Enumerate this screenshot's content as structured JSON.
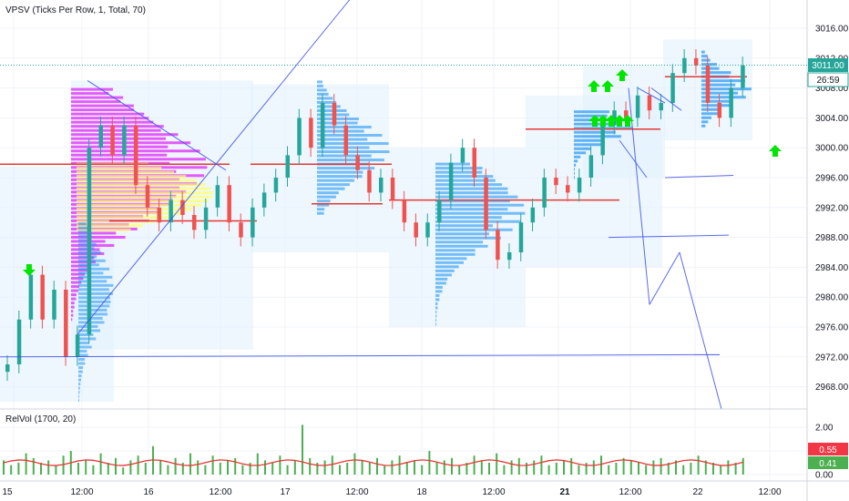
{
  "indicators": {
    "main_title": "VPSV (Ticks Per Row, 1, Total, 70)",
    "sub_title": "RelVol (1700, 20)"
  },
  "price_axis": {
    "ticks": [
      "3016.00",
      "3012.00",
      "3008.00",
      "3004.00",
      "3000.00",
      "2996.00",
      "2992.00",
      "2988.00",
      "2984.00",
      "2980.00",
      "2976.00",
      "2972.00",
      "2968.00"
    ],
    "last_price": "3011.00",
    "countdown": "26:59"
  },
  "volume_axis": {
    "ticks": [
      "2.00",
      "1.00",
      "0.00"
    ],
    "avg_tag": "0.55",
    "last_tag": "0.41"
  },
  "time_axis": {
    "labels": [
      "15",
      "12:00",
      "16",
      "12:00",
      "17",
      "12:00",
      "18",
      "12:00",
      "19",
      "12:00",
      "21",
      "12:00",
      "22",
      "12:00"
    ],
    "bold_index": 10
  },
  "colors": {
    "up": "#26a69a",
    "down": "#ef5350",
    "poc": "#e53935",
    "profile_blue": "#2196f3",
    "profile_magenta": "#e040fb",
    "profile_yellow": "#ffff66",
    "arrow_green": "#00e600",
    "projection_line": "#3f51e5",
    "volume_bar": "#4caf50",
    "rel_line": "#e53935",
    "last_price_tag": "#26a69a",
    "avg_tag": "#f23645"
  },
  "chart_data": {
    "type": "candlestick",
    "price_ylim": [
      2965,
      3019
    ],
    "price_tick_values": [
      3016,
      3012,
      3008,
      3004,
      3000,
      2996,
      2992,
      2988,
      2984,
      2980,
      2976,
      2972,
      2968
    ],
    "volume_ylim": [
      -0.4,
      2.4
    ],
    "volume_tick_values": [
      2,
      1,
      0
    ],
    "last_price": 3011.0,
    "relvol_avg": 0.55,
    "relvol_last": 0.41,
    "sessions": [
      {
        "label": "15",
        "close": 2973,
        "poc": 2969
      },
      {
        "label": "16",
        "close": 2991,
        "poc": 2997.8
      },
      {
        "label": "17",
        "close": 2999,
        "poc": 2993.3
      },
      {
        "label": "18",
        "close": 2989,
        "poc": 2993
      },
      {
        "label": "19",
        "close": 2995,
        "poc": 3002.5
      },
      {
        "label": "21",
        "close": 3006,
        "poc": 3002.5
      },
      {
        "label": "22",
        "close": 3011,
        "poc": 3009.5
      }
    ],
    "close_path": [
      2971,
      2977,
      2983,
      2977,
      2981,
      2972,
      2975,
      3000,
      3003,
      2999,
      3003,
      2995,
      2992,
      2990,
      2993,
      2991,
      2989,
      2992,
      2995,
      2990,
      2988,
      2992,
      2994,
      2996,
      2999,
      3004,
      3000,
      3006,
      3003,
      2999,
      2997,
      2994,
      2996,
      2993,
      2990,
      2988,
      2990,
      2993,
      2998,
      3000,
      2996,
      2989,
      2985,
      2986,
      2990,
      2992,
      2996,
      2995,
      2994,
      2996,
      2999,
      3003,
      3005,
      3004,
      3007,
      3005,
      3006,
      3010,
      3012,
      3011,
      3006,
      3004,
      3008,
      3011
    ],
    "volume_values": [
      0.6,
      0.4,
      0.5,
      0.9,
      0.7,
      0.5,
      0.6,
      0.4,
      0.8,
      1.0,
      0.5,
      0.6,
      0.4,
      0.9,
      0.5,
      0.7,
      0.3,
      0.6,
      0.8,
      0.5,
      1.2,
      0.6,
      0.4,
      0.7,
      0.5,
      0.9,
      0.6,
      0.4,
      0.8,
      0.5,
      0.6,
      0.7,
      0.4,
      0.5,
      0.9,
      0.6,
      0.5,
      0.8,
      0.4,
      0.6,
      2.1,
      0.7,
      0.5,
      0.6,
      0.8,
      0.4,
      0.5,
      0.9,
      0.6,
      0.5,
      0.7,
      0.4,
      0.6,
      0.8,
      0.5,
      0.6,
      0.4,
      1.0,
      0.5,
      0.6,
      0.7,
      0.4,
      0.5,
      0.8,
      0.6,
      0.5,
      0.9,
      0.4,
      0.6,
      0.7,
      0.5,
      0.6,
      0.8,
      0.4,
      0.5,
      0.6,
      0.7,
      0.4,
      0.5,
      0.6,
      0.8,
      0.4,
      0.5,
      0.7,
      0.6,
      0.5,
      0.4,
      0.6,
      0.7,
      0.5,
      0.6,
      0.4,
      0.5,
      0.8,
      0.6,
      0.5,
      0.4,
      0.6,
      0.5,
      0.7
    ]
  }
}
